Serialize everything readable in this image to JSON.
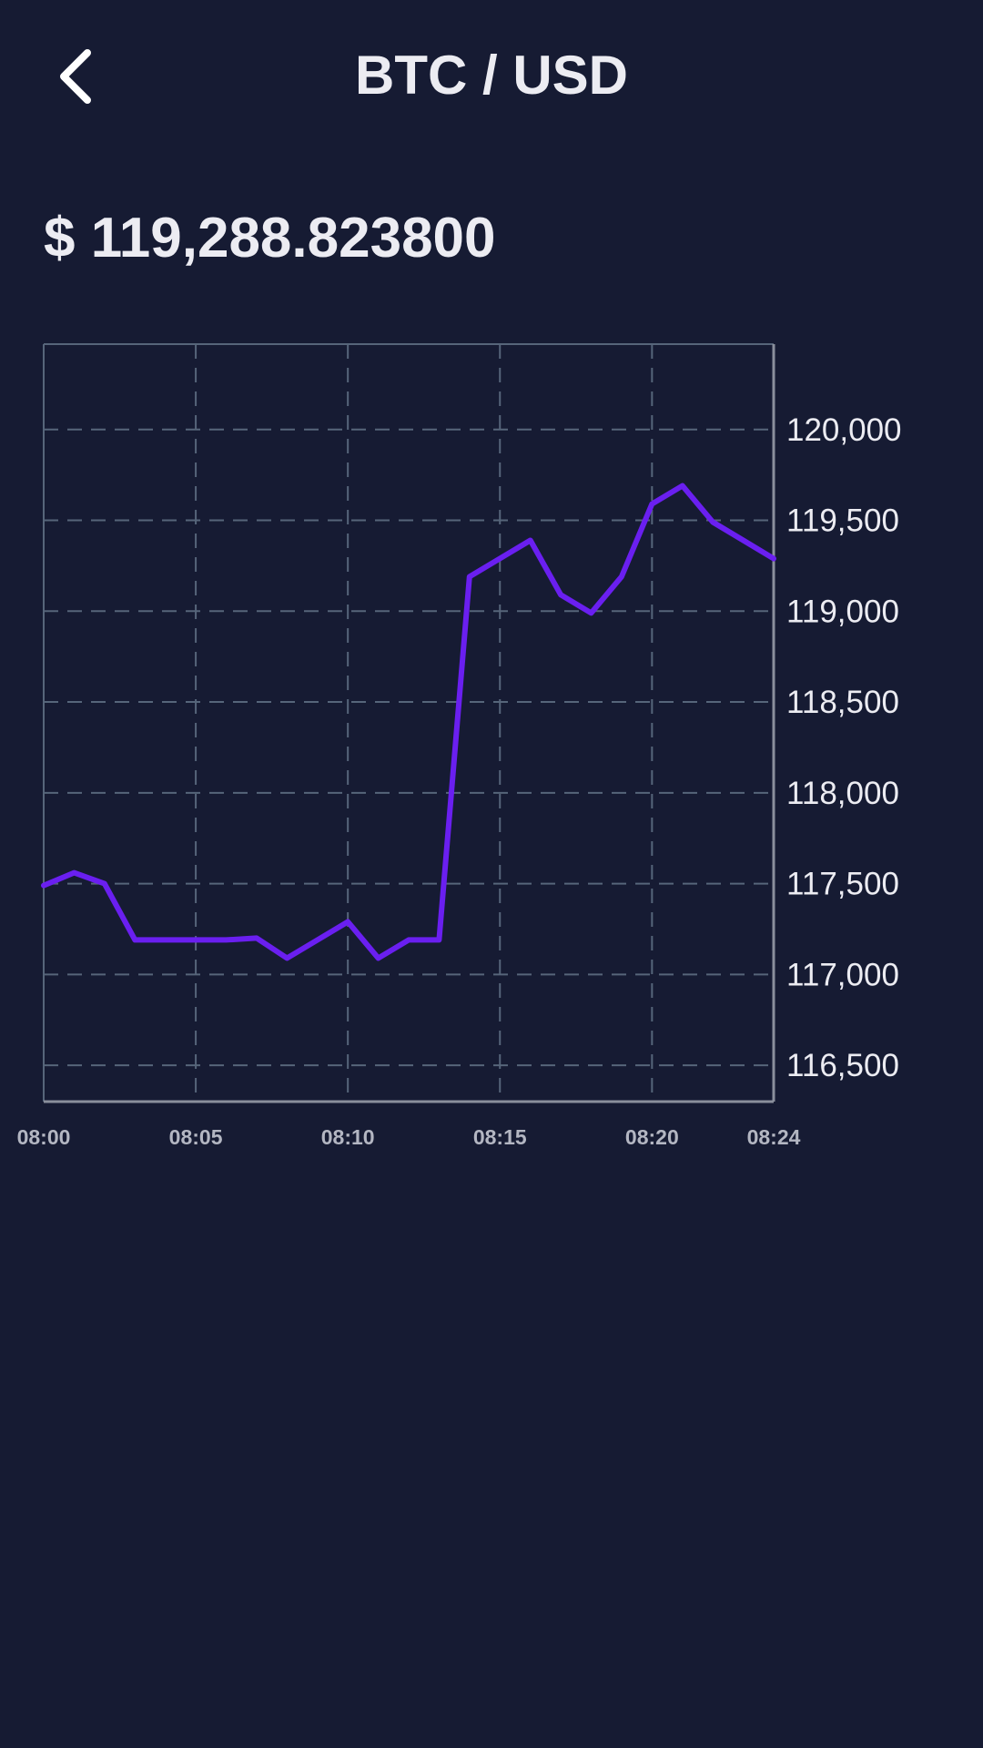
{
  "header": {
    "back_icon": "chevron-left-icon",
    "title": "BTC / USD"
  },
  "price": {
    "display": "$ 119,288.823800"
  },
  "colors": {
    "background": "#161b33",
    "line": "#6a1ff0",
    "grid": "#56657a",
    "axis": "#8a8f9c",
    "text": "#ececf2",
    "muted_text": "#b3b6c2"
  },
  "chart_data": {
    "type": "line",
    "title": "",
    "xlabel": "",
    "ylabel": "",
    "x_ticks": [
      "08:00",
      "08:05",
      "08:10",
      "08:15",
      "08:20",
      "08:24"
    ],
    "x_tick_minutes": [
      0,
      5,
      10,
      15,
      20,
      24
    ],
    "y_ticks": [
      "116,500",
      "117,000",
      "117,500",
      "118,000",
      "118,500",
      "119,000",
      "119,500",
      "120,000"
    ],
    "y_tick_values": [
      116500,
      117000,
      117500,
      118000,
      118500,
      119000,
      119500,
      120000
    ],
    "x_unit": "minutes after 08:00",
    "xlim": [
      0,
      24
    ],
    "ylim": [
      116300,
      120470
    ],
    "y_axis_position": "right",
    "grid": true,
    "grid_style": "dashed",
    "legend": false,
    "series": [
      {
        "x": [
          0,
          1,
          2,
          3,
          4,
          5,
          6,
          7,
          8,
          9,
          10,
          11,
          12,
          13,
          14,
          15,
          16,
          17,
          18,
          19,
          20,
          21,
          22,
          23,
          24
        ],
        "values": [
          117490,
          117560,
          117500,
          117190,
          117190,
          117190,
          117190,
          117200,
          117090,
          117190,
          117290,
          117090,
          117190,
          117190,
          119190,
          119290,
          119390,
          119090,
          118990,
          119190,
          119590,
          119690,
          119490,
          119390,
          119289
        ]
      }
    ]
  }
}
